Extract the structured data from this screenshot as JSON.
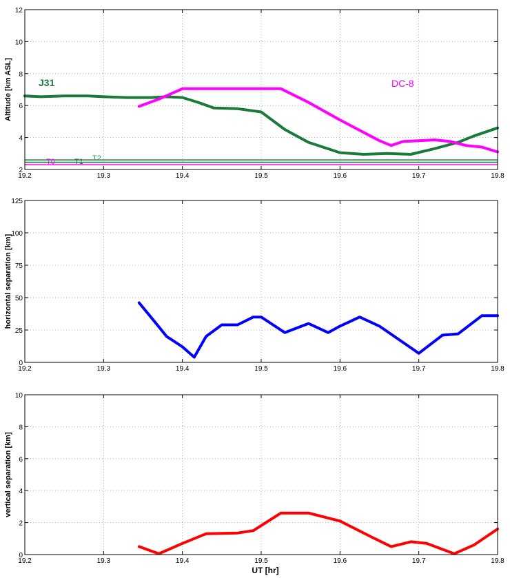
{
  "xlabel": "UT [hr]",
  "colors": {
    "j31": "#1a7a3a",
    "dc8": "#ff00ff",
    "hsep": "#0000ff",
    "vsep": "#ff0000",
    "t_lines": "#2a9a5a"
  },
  "chart_data": [
    {
      "type": "line",
      "ylabel": "Altitude [km ASL]",
      "xlim": [
        19.2,
        19.8
      ],
      "ylim": [
        2,
        12
      ],
      "xticks": [
        "19.2",
        "19.3",
        "19.4",
        "19.5",
        "19.6",
        "19.7",
        "19.8"
      ],
      "yticks": [
        "2",
        "4",
        "6",
        "8",
        "10",
        "12"
      ],
      "grid": true,
      "annotations": [
        {
          "text": "J31",
          "series": "J31"
        },
        {
          "text": "DC-8",
          "series": "DC-8"
        },
        {
          "text": "T0"
        },
        {
          "text": "T1"
        },
        {
          "text": "T2"
        }
      ],
      "reference_lines": [
        {
          "name": "T0",
          "y": 2.3
        },
        {
          "name": "T1",
          "y": 2.45
        },
        {
          "name": "T2",
          "y": 2.6
        }
      ],
      "series": [
        {
          "name": "J31",
          "x": [
            19.2,
            19.22,
            19.25,
            19.28,
            19.3,
            19.33,
            19.36,
            19.38,
            19.4,
            19.42,
            19.44,
            19.47,
            19.5,
            19.53,
            19.56,
            19.6,
            19.63,
            19.66,
            19.69,
            19.72,
            19.75,
            19.77,
            19.8
          ],
          "y": [
            6.6,
            6.55,
            6.6,
            6.6,
            6.55,
            6.5,
            6.5,
            6.55,
            6.5,
            6.2,
            5.85,
            5.8,
            5.6,
            4.5,
            3.7,
            3.05,
            2.95,
            3.0,
            2.95,
            3.3,
            3.7,
            4.1,
            4.6
          ]
        },
        {
          "name": "DC-8",
          "x": [
            19.345,
            19.37,
            19.4,
            19.45,
            19.5,
            19.525,
            19.56,
            19.6,
            19.65,
            19.665,
            19.68,
            19.7,
            19.72,
            19.74,
            19.76,
            19.78,
            19.8
          ],
          "y": [
            5.95,
            6.4,
            7.05,
            7.05,
            7.05,
            7.05,
            6.2,
            5.1,
            3.8,
            3.5,
            3.75,
            3.8,
            3.85,
            3.75,
            3.5,
            3.4,
            3.1
          ]
        }
      ]
    },
    {
      "type": "line",
      "ylabel": "horizontal separation [km]",
      "xlim": [
        19.2,
        19.8
      ],
      "ylim": [
        0,
        125
      ],
      "xticks": [
        "19.2",
        "19.3",
        "19.4",
        "19.5",
        "19.6",
        "19.7",
        "19.8"
      ],
      "yticks": [
        "0",
        "25",
        "50",
        "75",
        "100",
        "125"
      ],
      "grid": true,
      "series": [
        {
          "name": "",
          "x": [
            19.345,
            19.36,
            19.38,
            19.4,
            19.415,
            19.43,
            19.45,
            19.47,
            19.49,
            19.5,
            19.53,
            19.56,
            19.585,
            19.6,
            19.625,
            19.65,
            19.7,
            19.73,
            19.75,
            19.78,
            19.8
          ],
          "y": [
            46,
            35,
            20,
            12,
            4,
            20,
            29,
            29,
            35,
            35,
            23,
            30,
            23,
            28,
            35,
            28,
            7,
            21,
            22,
            36,
            36
          ]
        }
      ]
    },
    {
      "type": "line",
      "ylabel": "vertical separation [km]",
      "xlim": [
        19.2,
        19.8
      ],
      "ylim": [
        0,
        10
      ],
      "xticks": [
        "19.2",
        "19.3",
        "19.4",
        "19.5",
        "19.6",
        "19.7",
        "19.8"
      ],
      "yticks": [
        "0",
        "2",
        "4",
        "6",
        "8",
        "10"
      ],
      "grid": true,
      "series": [
        {
          "name": "",
          "x": [
            19.345,
            19.37,
            19.4,
            19.43,
            19.47,
            19.49,
            19.525,
            19.56,
            19.6,
            19.64,
            19.665,
            19.69,
            19.71,
            19.745,
            19.77,
            19.8
          ],
          "y": [
            0.5,
            0.05,
            0.7,
            1.3,
            1.35,
            1.5,
            2.6,
            2.6,
            2.1,
            1.1,
            0.5,
            0.8,
            0.7,
            0.05,
            0.6,
            1.6
          ]
        }
      ]
    }
  ]
}
